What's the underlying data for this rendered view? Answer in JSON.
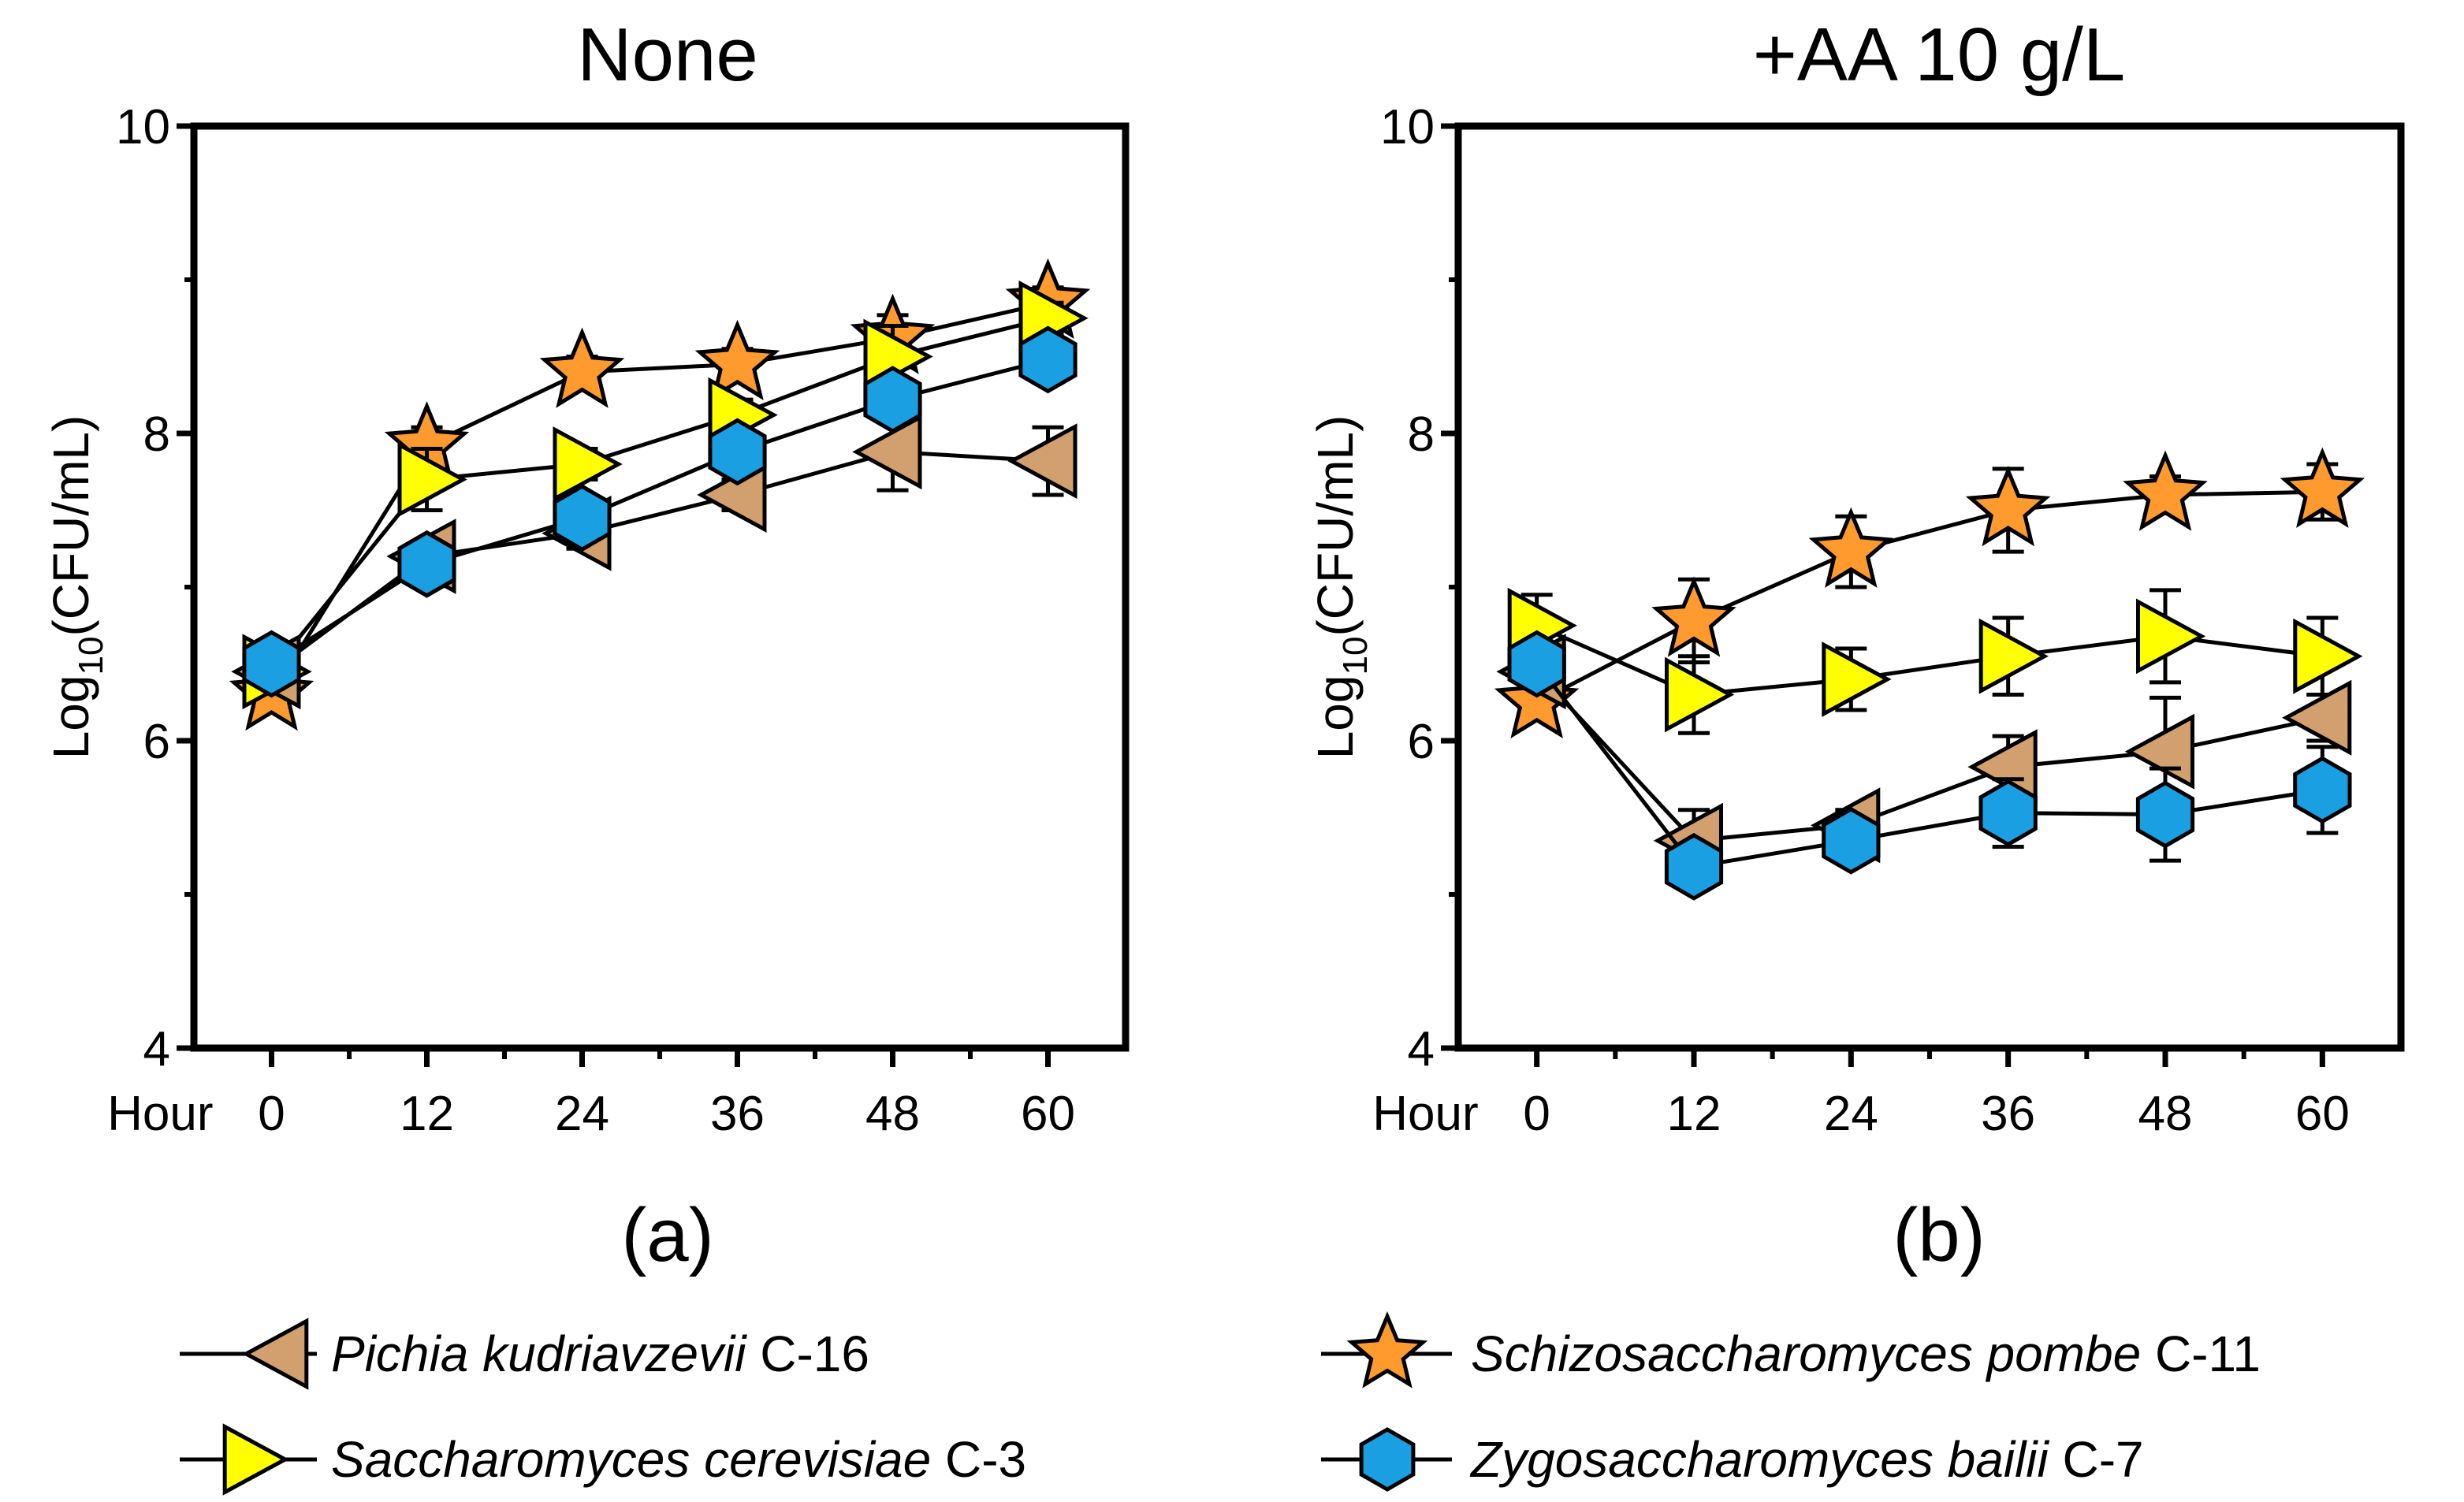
{
  "colors": {
    "pichia": "#D2A06E",
    "saccharomyces": "#FFFF00",
    "schizo": "#FF9A2E",
    "zygo": "#1B9FE3",
    "stroke": "#000000"
  },
  "legend": [
    {
      "key": "pichia",
      "marker": "triangle-left",
      "italic": "Pichia kudriavzevii",
      "plain": " C-16"
    },
    {
      "key": "schizo",
      "marker": "star",
      "italic": "Schizosaccharomyces pombe",
      "plain": " C-11"
    },
    {
      "key": "saccharomyces",
      "marker": "triangle-right",
      "italic": "Saccharomyces cerevisiae",
      "plain": " C-3"
    },
    {
      "key": "zygo",
      "marker": "hexagon",
      "italic": "Zygosaccharomyces bailii",
      "plain": " C-7"
    }
  ],
  "chart_data": [
    {
      "type": "line",
      "title": "None",
      "panel_label": "(a)",
      "xlabel": "Hour",
      "ylabel_prefix": "Log",
      "ylabel_sub": "10",
      "ylabel_suffix": "(CFU/mL)",
      "x": [
        0,
        12,
        24,
        36,
        48,
        60
      ],
      "xticks": [
        "0",
        "12",
        "24",
        "36",
        "48",
        "60"
      ],
      "yticks": [
        "4",
        "6",
        "8",
        "10"
      ],
      "ylim": [
        4,
        10
      ],
      "xlim": [
        -6,
        66
      ],
      "series": [
        {
          "key": "pichia",
          "name": "Pichia kudriavzevii C-16",
          "marker": "triangle-left",
          "values": [
            6.45,
            7.2,
            7.35,
            7.6,
            7.88,
            7.82
          ],
          "err": [
            0.05,
            0.1,
            0.1,
            0.1,
            0.25,
            0.22
          ]
        },
        {
          "key": "saccharomyces",
          "name": "Saccharomyces cerevisiae C-3",
          "marker": "triangle-right",
          "values": [
            6.45,
            7.7,
            7.8,
            8.12,
            8.5,
            8.75
          ],
          "err": [
            0.05,
            0.2,
            0.1,
            0.1,
            0.2,
            0.1
          ]
        },
        {
          "key": "schizo",
          "name": "Schizosaccharomyces pombe C-11",
          "marker": "star",
          "values": [
            6.3,
            7.92,
            8.4,
            8.45,
            8.62,
            8.85
          ],
          "err": [
            0.05,
            0.12,
            0.1,
            0.1,
            0.15,
            0.1
          ]
        },
        {
          "key": "zygo",
          "name": "Zygosaccharomyces bailii C-7",
          "marker": "hexagon",
          "values": [
            6.5,
            7.15,
            7.45,
            7.88,
            8.22,
            8.48
          ],
          "err": [
            0.05,
            0.1,
            0.1,
            0.1,
            0.12,
            0.15
          ]
        }
      ]
    },
    {
      "type": "line",
      "title": "+AA 10 g/L",
      "panel_label": "(b)",
      "xlabel": "Hour",
      "ylabel_prefix": "Log",
      "ylabel_sub": "10",
      "ylabel_suffix": "(CFU/mL)",
      "x": [
        0,
        12,
        24,
        36,
        48,
        60
      ],
      "xticks": [
        "0",
        "12",
        "24",
        "36",
        "48",
        "60"
      ],
      "yticks": [
        "4",
        "6",
        "8",
        "10"
      ],
      "ylim": [
        4,
        10
      ],
      "xlim": [
        -6,
        66
      ],
      "series": [
        {
          "key": "pichia",
          "name": "Pichia kudriavzevii C-16",
          "marker": "triangle-left",
          "values": [
            6.45,
            5.35,
            5.45,
            5.83,
            5.93,
            6.15
          ],
          "err": [
            0.05,
            0.2,
            0.1,
            0.2,
            0.35,
            0.15
          ]
        },
        {
          "key": "saccharomyces",
          "name": "Saccharomyces cerevisiae C-3",
          "marker": "triangle-right",
          "values": [
            6.75,
            6.3,
            6.4,
            6.55,
            6.68,
            6.55
          ],
          "err": [
            0.2,
            0.25,
            0.2,
            0.25,
            0.3,
            0.25
          ]
        },
        {
          "key": "schizo",
          "name": "Schizosaccharomyces pombe C-11",
          "marker": "star",
          "values": [
            6.25,
            6.78,
            7.23,
            7.5,
            7.6,
            7.62
          ],
          "err": [
            0.05,
            0.27,
            0.23,
            0.27,
            0.12,
            0.18
          ]
        },
        {
          "key": "zygo",
          "name": "Zygosaccharomyces bailii C-7",
          "marker": "hexagon",
          "values": [
            6.5,
            5.18,
            5.35,
            5.53,
            5.52,
            5.68
          ],
          "err": [
            0.05,
            0.1,
            0.1,
            0.22,
            0.3,
            0.28
          ]
        }
      ]
    }
  ]
}
